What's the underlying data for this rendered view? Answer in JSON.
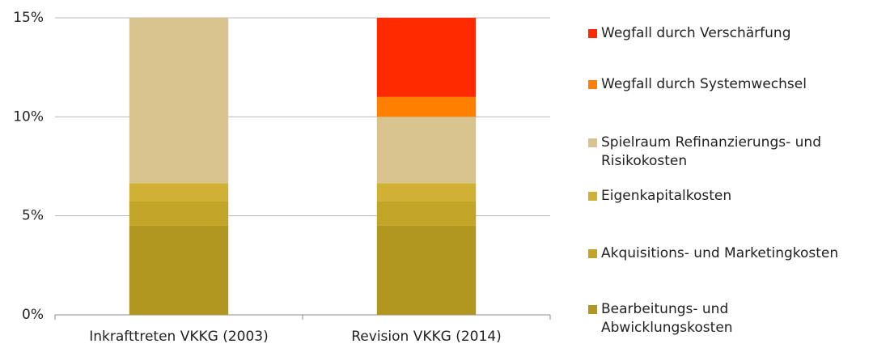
{
  "chart_data": {
    "type": "stacked_bar",
    "categories": [
      "Inkrafttreten VKKG (2003)",
      "Revision VKKG (2014)"
    ],
    "series": [
      {
        "name": "Bearbeitungs- und Abwicklungskosten",
        "color": "#b1971f",
        "values": [
          4.5,
          4.5
        ]
      },
      {
        "name": "Akquisitions- und Marketingkosten",
        "color": "#c2a427",
        "values": [
          1.25,
          1.25
        ]
      },
      {
        "name": "Eigenkapitalkosten",
        "color": "#d1b133",
        "values": [
          0.9,
          0.9
        ]
      },
      {
        "name": "Spielraum Refinanzierungs- und Risikokosten",
        "color": "#d9c38f",
        "values": [
          8.35,
          3.35
        ]
      },
      {
        "name": "Wegfall durch Systemwechsel",
        "color": "#ff7f00",
        "values": [
          0,
          1
        ]
      },
      {
        "name": "Wegfall durch Verschärfung",
        "color": "#ff2a00",
        "values": [
          0,
          4
        ]
      }
    ],
    "ylim": [
      0,
      15
    ],
    "yticks": [
      {
        "value": 0,
        "label": "0%"
      },
      {
        "value": 5,
        "label": "5%"
      },
      {
        "value": 10,
        "label": "10%"
      },
      {
        "value": 15,
        "label": "15%"
      }
    ],
    "grid": true,
    "legend": "right"
  }
}
